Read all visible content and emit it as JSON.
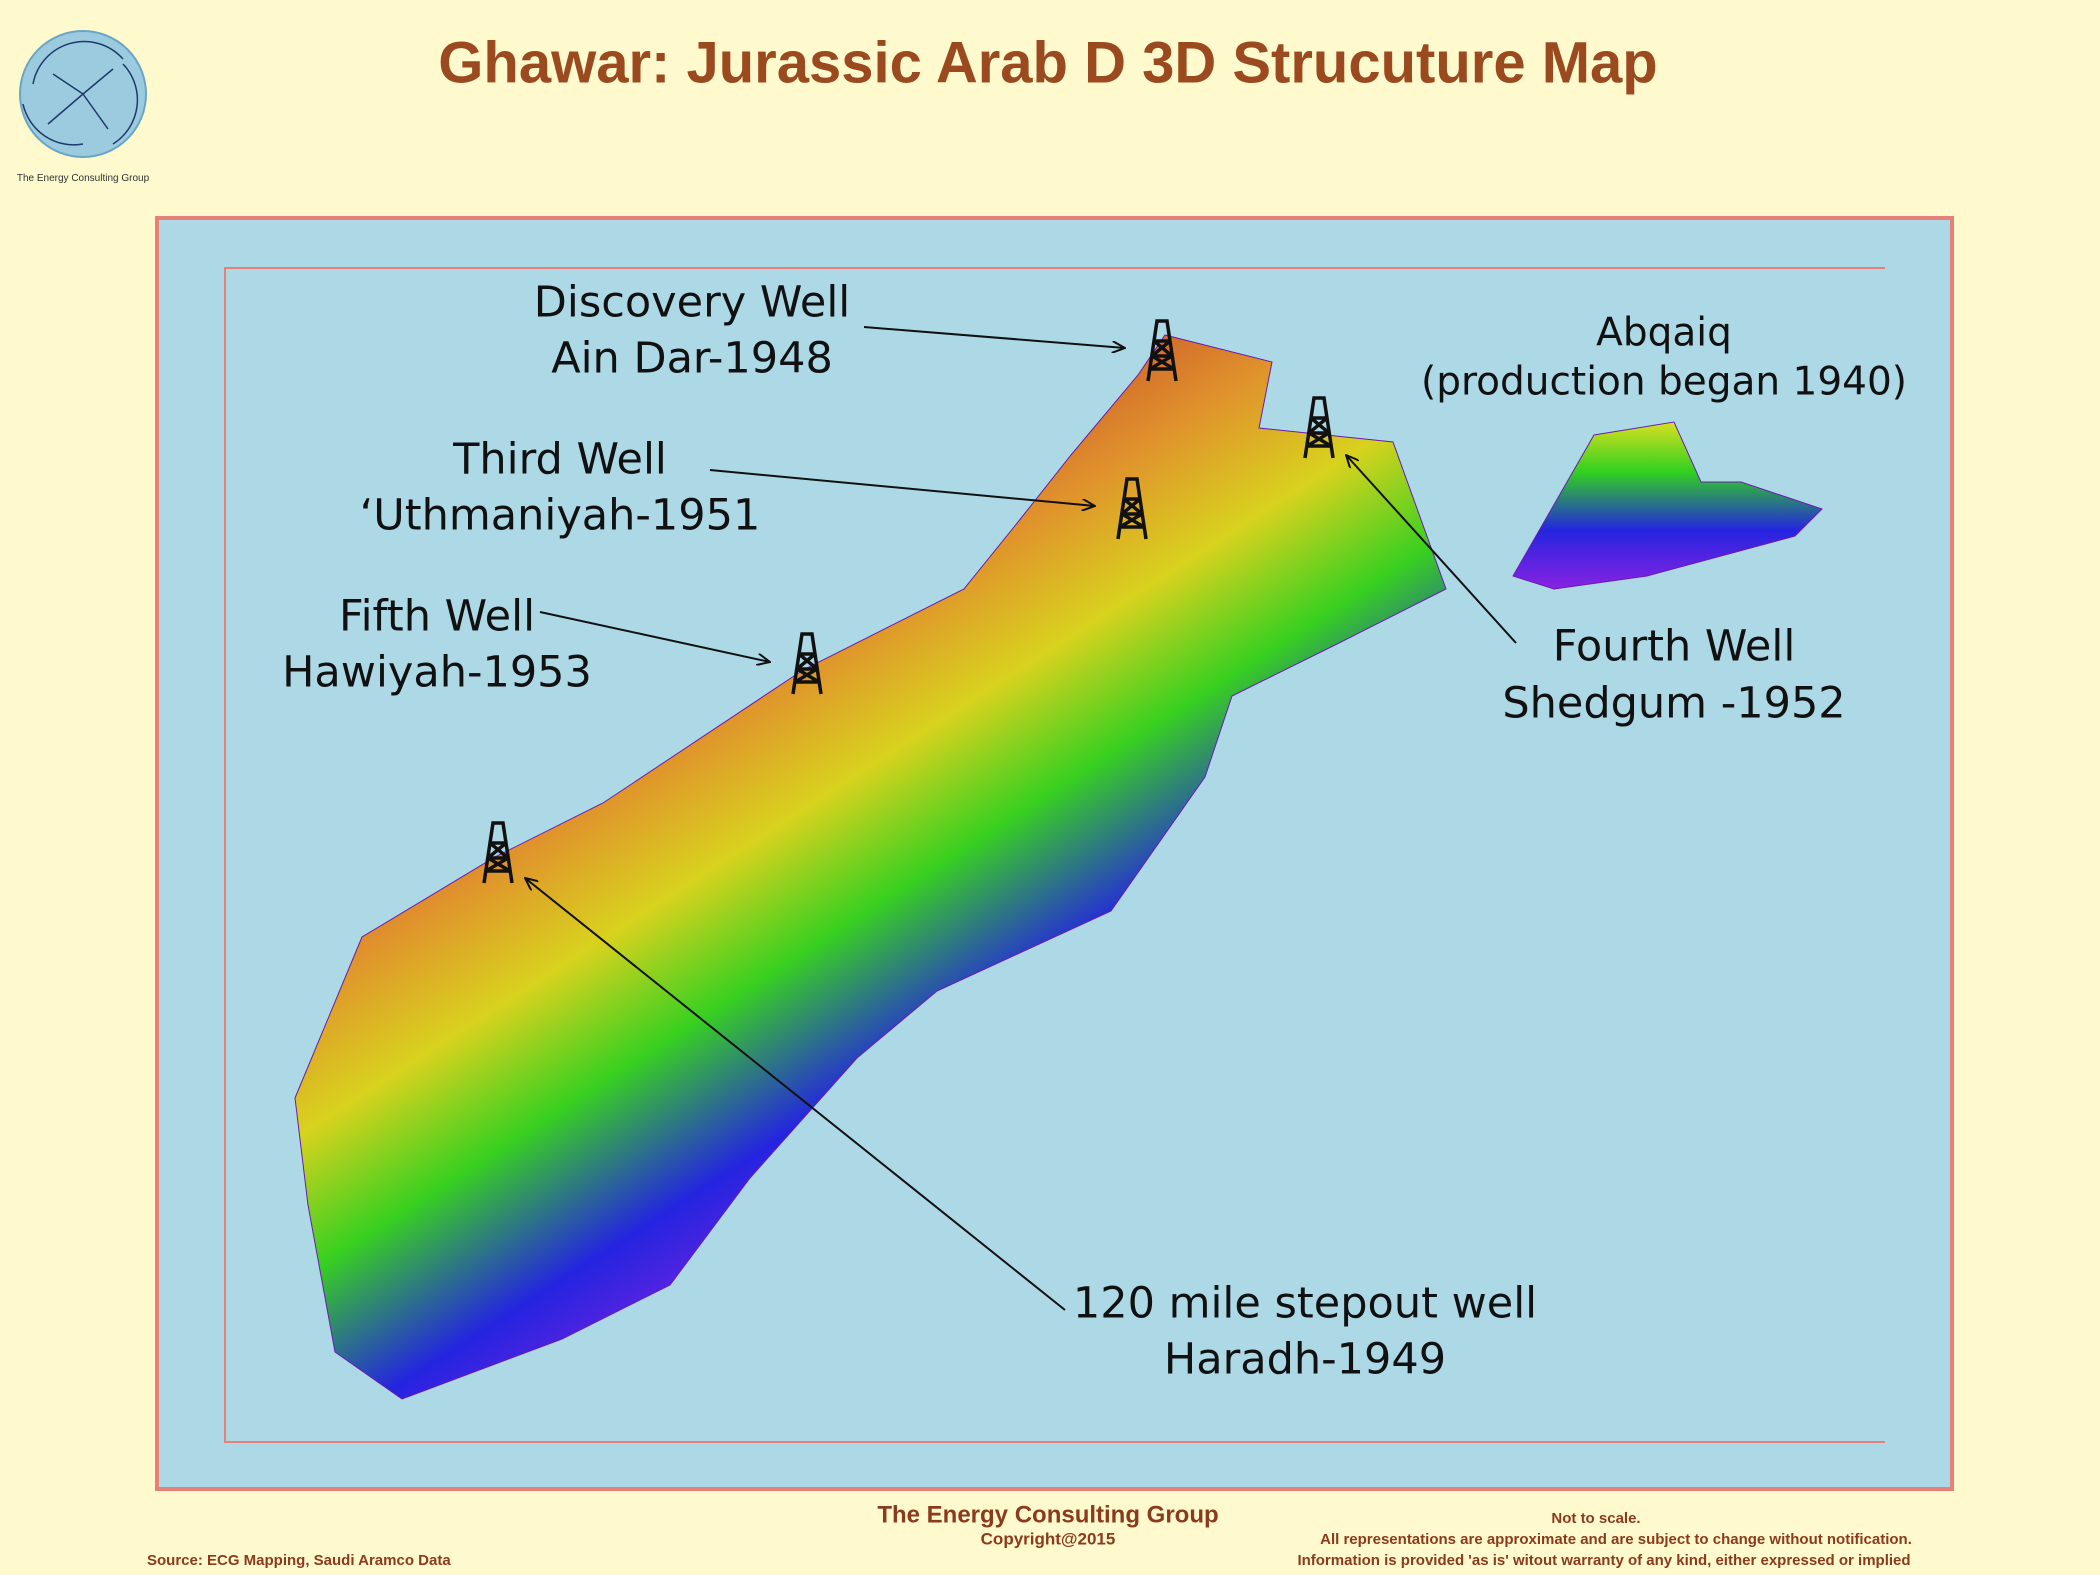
{
  "header": {
    "title": "Ghawar: Jurassic Arab D 3D Strucuture Map",
    "logo_caption": "The Energy Consulting Group"
  },
  "map": {
    "labels": [
      {
        "lines": [
          "Discovery Well",
          "Ain Dar-1948"
        ]
      },
      {
        "lines": [
          "Abqaiq",
          "(production began 1940)"
        ]
      },
      {
        "lines": [
          "Third Well",
          "‘Uthmaniyah-1951"
        ]
      },
      {
        "lines": [
          "Fifth Well",
          "Hawiyah-1953"
        ]
      },
      {
        "lines": [
          "Fourth Well",
          "Shedgum -1952"
        ]
      },
      {
        "lines": [
          "120 mile stepout well",
          "Haradh-1949"
        ]
      }
    ]
  },
  "footer": {
    "company": "The Energy Consulting Group",
    "copyright": "Copyright@2015",
    "source": "Source: ECG Mapping, Saudi Aramco Data",
    "disclaimer": [
      "Not to scale.",
      "All representations are approximate and are subject to change without notification.",
      "Information is provided 'as is' witout warranty of any kind, either expressed or implied"
    ]
  }
}
